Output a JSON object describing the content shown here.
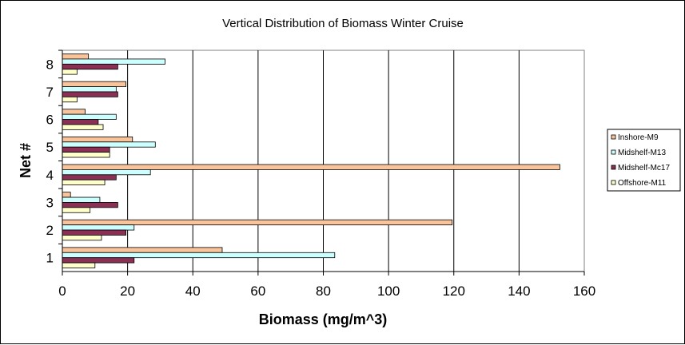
{
  "chart_data": {
    "type": "bar",
    "orientation": "horizontal",
    "title": "Vertical Distribution of Biomass Winter Cruise",
    "xlabel": "Biomass (mg/m^3)",
    "ylabel": "Net #",
    "xlim": [
      0,
      160
    ],
    "xticks": [
      "0",
      "20",
      "40",
      "60",
      "80",
      "100",
      "120",
      "140",
      "160"
    ],
    "categories": [
      "1",
      "2",
      "3",
      "4",
      "5",
      "6",
      "7",
      "8"
    ],
    "grid": "vertical",
    "legend_position": "right",
    "series": [
      {
        "name": "Inshore-M9",
        "color": "#f9c49b",
        "values": [
          49,
          119.5,
          2.5,
          152.5,
          21.5,
          7,
          19.5,
          8
        ]
      },
      {
        "name": "Midshelf-M13",
        "color": "#ccffff",
        "values": [
          83.5,
          22,
          11.5,
          27,
          28.5,
          16.5,
          16.5,
          31.5
        ]
      },
      {
        "name": "Midshelf-Mc17",
        "color": "#8b2f55",
        "values": [
          22,
          19.5,
          17,
          16.5,
          14.5,
          11,
          17,
          17
        ]
      },
      {
        "name": "Offshore-M11",
        "color": "#ffffcc",
        "values": [
          10,
          12,
          8.5,
          13,
          14.5,
          12.5,
          4.5,
          4.5
        ]
      }
    ]
  }
}
